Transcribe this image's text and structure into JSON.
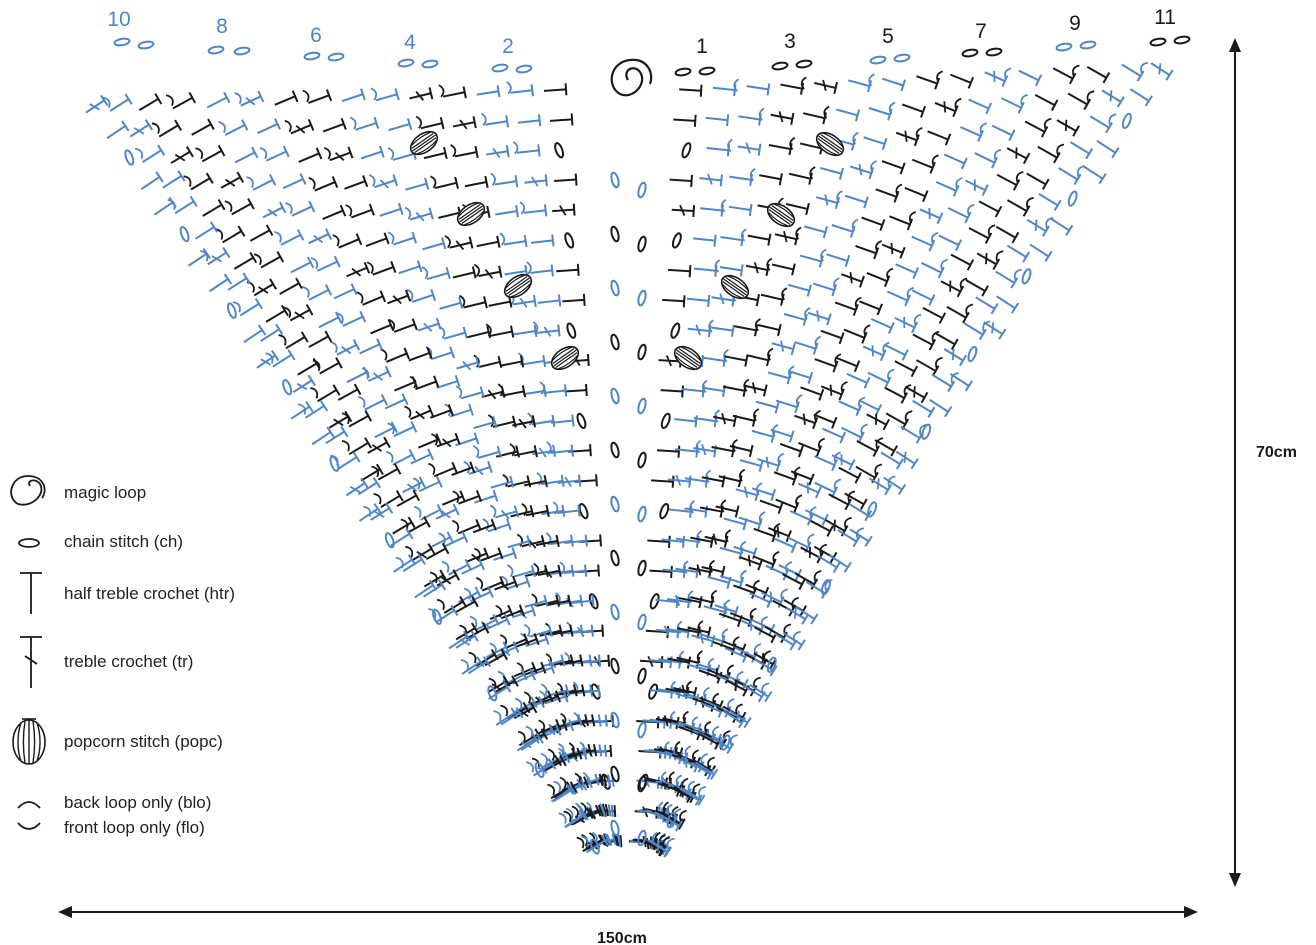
{
  "colors": {
    "black": "#1a1a1a",
    "blue": "#4f86c6"
  },
  "row_numbers": {
    "left": [
      "10",
      "8",
      "6",
      "4",
      "2"
    ],
    "right": [
      "1",
      "3",
      "5",
      "7",
      "9",
      "11"
    ]
  },
  "dimensions": {
    "height": "70cm",
    "width": "150cm"
  },
  "legend": [
    {
      "icon": "magic-loop-icon",
      "label": "magic loop"
    },
    {
      "icon": "chain-stitch-icon",
      "label": "chain stitch (ch)"
    },
    {
      "icon": "half-treble-crochet-icon",
      "label": "half treble crochet (htr)"
    },
    {
      "icon": "treble-crochet-icon",
      "label": "treble crochet (tr)"
    },
    {
      "icon": "popcorn-stitch-icon",
      "label": "popcorn stitch (popc)"
    },
    {
      "icon": "back-loop-only-icon",
      "label": "back loop only (blo)"
    },
    {
      "icon": "front-loop-only-icon",
      "label": "front loop only (flo)"
    }
  ]
}
